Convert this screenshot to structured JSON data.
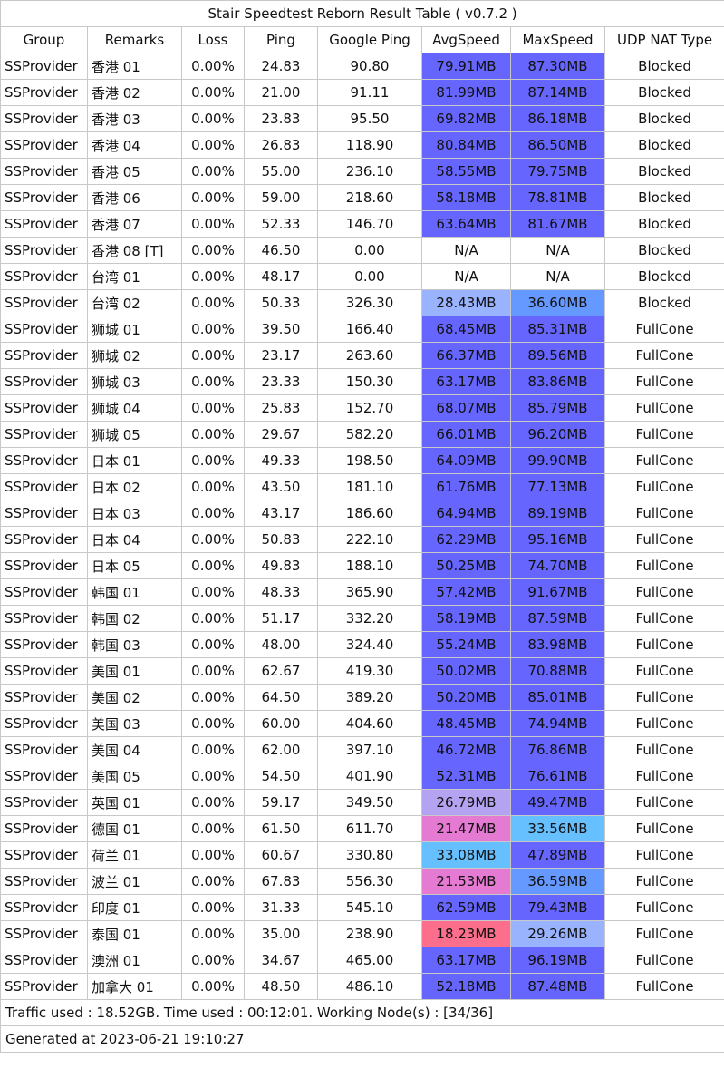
{
  "title": "Stair Speedtest Reborn Result Table ( v0.7.2 )",
  "columns": [
    "Group",
    "Remarks",
    "Loss",
    "Ping",
    "Google Ping",
    "AvgSpeed",
    "MaxSpeed",
    "UDP NAT Type"
  ],
  "colors": {
    "fast": "#6666ff",
    "lavender": "#b4a3f0",
    "pink": "#e47ad1",
    "skyblue": "#66bfff",
    "lightblue": "#99b3ff",
    "mediumblue": "#6699ff",
    "red": "#fc6e8c",
    "none": "#ffffff"
  },
  "rows": [
    {
      "group": "SSProvider",
      "remarks": "香港 01",
      "loss": "0.00%",
      "ping": "24.83",
      "google_ping": "90.80",
      "avg_speed": "79.91MB",
      "max_speed": "87.30MB",
      "nat": "Blocked",
      "avg_color": "#6666ff",
      "max_color": "#6666ff"
    },
    {
      "group": "SSProvider",
      "remarks": "香港 02",
      "loss": "0.00%",
      "ping": "21.00",
      "google_ping": "91.11",
      "avg_speed": "81.99MB",
      "max_speed": "87.14MB",
      "nat": "Blocked",
      "avg_color": "#6666ff",
      "max_color": "#6666ff"
    },
    {
      "group": "SSProvider",
      "remarks": "香港 03",
      "loss": "0.00%",
      "ping": "23.83",
      "google_ping": "95.50",
      "avg_speed": "69.82MB",
      "max_speed": "86.18MB",
      "nat": "Blocked",
      "avg_color": "#6666ff",
      "max_color": "#6666ff"
    },
    {
      "group": "SSProvider",
      "remarks": "香港 04",
      "loss": "0.00%",
      "ping": "26.83",
      "google_ping": "118.90",
      "avg_speed": "80.84MB",
      "max_speed": "86.50MB",
      "nat": "Blocked",
      "avg_color": "#6666ff",
      "max_color": "#6666ff"
    },
    {
      "group": "SSProvider",
      "remarks": "香港 05",
      "loss": "0.00%",
      "ping": "55.00",
      "google_ping": "236.10",
      "avg_speed": "58.55MB",
      "max_speed": "79.75MB",
      "nat": "Blocked",
      "avg_color": "#6666ff",
      "max_color": "#6666ff"
    },
    {
      "group": "SSProvider",
      "remarks": "香港 06",
      "loss": "0.00%",
      "ping": "59.00",
      "google_ping": "218.60",
      "avg_speed": "58.18MB",
      "max_speed": "78.81MB",
      "nat": "Blocked",
      "avg_color": "#6666ff",
      "max_color": "#6666ff"
    },
    {
      "group": "SSProvider",
      "remarks": "香港 07",
      "loss": "0.00%",
      "ping": "52.33",
      "google_ping": "146.70",
      "avg_speed": "63.64MB",
      "max_speed": "81.67MB",
      "nat": "Blocked",
      "avg_color": "#6666ff",
      "max_color": "#6666ff"
    },
    {
      "group": "SSProvider",
      "remarks": "香港 08 [T]",
      "loss": "0.00%",
      "ping": "46.50",
      "google_ping": "0.00",
      "avg_speed": "N/A",
      "max_speed": "N/A",
      "nat": "Blocked",
      "avg_color": "#ffffff",
      "max_color": "#ffffff"
    },
    {
      "group": "SSProvider",
      "remarks": "台湾 01",
      "loss": "0.00%",
      "ping": "48.17",
      "google_ping": "0.00",
      "avg_speed": "N/A",
      "max_speed": "N/A",
      "nat": "Blocked",
      "avg_color": "#ffffff",
      "max_color": "#ffffff"
    },
    {
      "group": "SSProvider",
      "remarks": "台湾 02",
      "loss": "0.00%",
      "ping": "50.33",
      "google_ping": "326.30",
      "avg_speed": "28.43MB",
      "max_speed": "36.60MB",
      "nat": "Blocked",
      "avg_color": "#99b3ff",
      "max_color": "#6699ff"
    },
    {
      "group": "SSProvider",
      "remarks": "狮城 01",
      "loss": "0.00%",
      "ping": "39.50",
      "google_ping": "166.40",
      "avg_speed": "68.45MB",
      "max_speed": "85.31MB",
      "nat": "FullCone",
      "avg_color": "#6666ff",
      "max_color": "#6666ff"
    },
    {
      "group": "SSProvider",
      "remarks": "狮城 02",
      "loss": "0.00%",
      "ping": "23.17",
      "google_ping": "263.60",
      "avg_speed": "66.37MB",
      "max_speed": "89.56MB",
      "nat": "FullCone",
      "avg_color": "#6666ff",
      "max_color": "#6666ff"
    },
    {
      "group": "SSProvider",
      "remarks": "狮城 03",
      "loss": "0.00%",
      "ping": "23.33",
      "google_ping": "150.30",
      "avg_speed": "63.17MB",
      "max_speed": "83.86MB",
      "nat": "FullCone",
      "avg_color": "#6666ff",
      "max_color": "#6666ff"
    },
    {
      "group": "SSProvider",
      "remarks": "狮城 04",
      "loss": "0.00%",
      "ping": "25.83",
      "google_ping": "152.70",
      "avg_speed": "68.07MB",
      "max_speed": "85.79MB",
      "nat": "FullCone",
      "avg_color": "#6666ff",
      "max_color": "#6666ff"
    },
    {
      "group": "SSProvider",
      "remarks": "狮城 05",
      "loss": "0.00%",
      "ping": "29.67",
      "google_ping": "582.20",
      "avg_speed": "66.01MB",
      "max_speed": "96.20MB",
      "nat": "FullCone",
      "avg_color": "#6666ff",
      "max_color": "#6666ff"
    },
    {
      "group": "SSProvider",
      "remarks": "日本 01",
      "loss": "0.00%",
      "ping": "49.33",
      "google_ping": "198.50",
      "avg_speed": "64.09MB",
      "max_speed": "99.90MB",
      "nat": "FullCone",
      "avg_color": "#6666ff",
      "max_color": "#6666ff"
    },
    {
      "group": "SSProvider",
      "remarks": "日本 02",
      "loss": "0.00%",
      "ping": "43.50",
      "google_ping": "181.10",
      "avg_speed": "61.76MB",
      "max_speed": "77.13MB",
      "nat": "FullCone",
      "avg_color": "#6666ff",
      "max_color": "#6666ff"
    },
    {
      "group": "SSProvider",
      "remarks": "日本 03",
      "loss": "0.00%",
      "ping": "43.17",
      "google_ping": "186.60",
      "avg_speed": "64.94MB",
      "max_speed": "89.19MB",
      "nat": "FullCone",
      "avg_color": "#6666ff",
      "max_color": "#6666ff"
    },
    {
      "group": "SSProvider",
      "remarks": "日本 04",
      "loss": "0.00%",
      "ping": "50.83",
      "google_ping": "222.10",
      "avg_speed": "62.29MB",
      "max_speed": "95.16MB",
      "nat": "FullCone",
      "avg_color": "#6666ff",
      "max_color": "#6666ff"
    },
    {
      "group": "SSProvider",
      "remarks": "日本 05",
      "loss": "0.00%",
      "ping": "49.83",
      "google_ping": "188.10",
      "avg_speed": "50.25MB",
      "max_speed": "74.70MB",
      "nat": "FullCone",
      "avg_color": "#6666ff",
      "max_color": "#6666ff"
    },
    {
      "group": "SSProvider",
      "remarks": "韩国 01",
      "loss": "0.00%",
      "ping": "48.33",
      "google_ping": "365.90",
      "avg_speed": "57.42MB",
      "max_speed": "91.67MB",
      "nat": "FullCone",
      "avg_color": "#6666ff",
      "max_color": "#6666ff"
    },
    {
      "group": "SSProvider",
      "remarks": "韩国 02",
      "loss": "0.00%",
      "ping": "51.17",
      "google_ping": "332.20",
      "avg_speed": "58.19MB",
      "max_speed": "87.59MB",
      "nat": "FullCone",
      "avg_color": "#6666ff",
      "max_color": "#6666ff"
    },
    {
      "group": "SSProvider",
      "remarks": "韩国 03",
      "loss": "0.00%",
      "ping": "48.00",
      "google_ping": "324.40",
      "avg_speed": "55.24MB",
      "max_speed": "83.98MB",
      "nat": "FullCone",
      "avg_color": "#6666ff",
      "max_color": "#6666ff"
    },
    {
      "group": "SSProvider",
      "remarks": "美国 01",
      "loss": "0.00%",
      "ping": "62.67",
      "google_ping": "419.30",
      "avg_speed": "50.02MB",
      "max_speed": "70.88MB",
      "nat": "FullCone",
      "avg_color": "#6666ff",
      "max_color": "#6666ff"
    },
    {
      "group": "SSProvider",
      "remarks": "美国 02",
      "loss": "0.00%",
      "ping": "64.50",
      "google_ping": "389.20",
      "avg_speed": "50.20MB",
      "max_speed": "85.01MB",
      "nat": "FullCone",
      "avg_color": "#6666ff",
      "max_color": "#6666ff"
    },
    {
      "group": "SSProvider",
      "remarks": "美国 03",
      "loss": "0.00%",
      "ping": "60.00",
      "google_ping": "404.60",
      "avg_speed": "48.45MB",
      "max_speed": "74.94MB",
      "nat": "FullCone",
      "avg_color": "#6666ff",
      "max_color": "#6666ff"
    },
    {
      "group": "SSProvider",
      "remarks": "美国 04",
      "loss": "0.00%",
      "ping": "62.00",
      "google_ping": "397.10",
      "avg_speed": "46.72MB",
      "max_speed": "76.86MB",
      "nat": "FullCone",
      "avg_color": "#6666ff",
      "max_color": "#6666ff"
    },
    {
      "group": "SSProvider",
      "remarks": "美国 05",
      "loss": "0.00%",
      "ping": "54.50",
      "google_ping": "401.90",
      "avg_speed": "52.31MB",
      "max_speed": "76.61MB",
      "nat": "FullCone",
      "avg_color": "#6666ff",
      "max_color": "#6666ff"
    },
    {
      "group": "SSProvider",
      "remarks": "英国 01",
      "loss": "0.00%",
      "ping": "59.17",
      "google_ping": "349.50",
      "avg_speed": "26.79MB",
      "max_speed": "49.47MB",
      "nat": "FullCone",
      "avg_color": "#b4a3f0",
      "max_color": "#6666ff"
    },
    {
      "group": "SSProvider",
      "remarks": "德国 01",
      "loss": "0.00%",
      "ping": "61.50",
      "google_ping": "611.70",
      "avg_speed": "21.47MB",
      "max_speed": "33.56MB",
      "nat": "FullCone",
      "avg_color": "#e47ad1",
      "max_color": "#66bfff"
    },
    {
      "group": "SSProvider",
      "remarks": "荷兰 01",
      "loss": "0.00%",
      "ping": "60.67",
      "google_ping": "330.80",
      "avg_speed": "33.08MB",
      "max_speed": "47.89MB",
      "nat": "FullCone",
      "avg_color": "#66bfff",
      "max_color": "#6666ff"
    },
    {
      "group": "SSProvider",
      "remarks": "波兰 01",
      "loss": "0.00%",
      "ping": "67.83",
      "google_ping": "556.30",
      "avg_speed": "21.53MB",
      "max_speed": "36.59MB",
      "nat": "FullCone",
      "avg_color": "#e47ad1",
      "max_color": "#6699ff"
    },
    {
      "group": "SSProvider",
      "remarks": "印度 01",
      "loss": "0.00%",
      "ping": "31.33",
      "google_ping": "545.10",
      "avg_speed": "62.59MB",
      "max_speed": "79.43MB",
      "nat": "FullCone",
      "avg_color": "#6666ff",
      "max_color": "#6666ff"
    },
    {
      "group": "SSProvider",
      "remarks": "泰国 01",
      "loss": "0.00%",
      "ping": "35.00",
      "google_ping": "238.90",
      "avg_speed": "18.23MB",
      "max_speed": "29.26MB",
      "nat": "FullCone",
      "avg_color": "#fc6e8c",
      "max_color": "#99b3ff"
    },
    {
      "group": "SSProvider",
      "remarks": "澳洲 01",
      "loss": "0.00%",
      "ping": "34.67",
      "google_ping": "465.00",
      "avg_speed": "63.17MB",
      "max_speed": "96.19MB",
      "nat": "FullCone",
      "avg_color": "#6666ff",
      "max_color": "#6666ff"
    },
    {
      "group": "SSProvider",
      "remarks": "加拿大 01",
      "loss": "0.00%",
      "ping": "48.50",
      "google_ping": "486.10",
      "avg_speed": "52.18MB",
      "max_speed": "87.48MB",
      "nat": "FullCone",
      "avg_color": "#6666ff",
      "max_color": "#6666ff"
    }
  ],
  "footer": {
    "traffic": "Traffic used : 18.52GB. Time used : 00:12:01. Working Node(s) : [34/36]",
    "generated": "Generated at 2023-06-21 19:10:27"
  }
}
